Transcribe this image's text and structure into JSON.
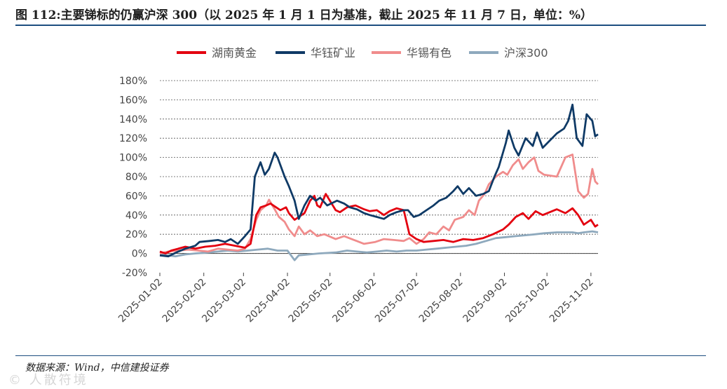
{
  "title": "图 112:主要锑标的仍赢沪深 300（以 2025 年 1 月 1 日为基准，截止 2025 年 11 月 7 日，单位：%）",
  "source": "数据来源：Wind，中信建投证券",
  "watermark": "© 人散符境",
  "chart_data": {
    "type": "line",
    "y_ticks": [
      "-20%",
      "0%",
      "20%",
      "40%",
      "60%",
      "80%",
      "100%",
      "120%",
      "140%",
      "160%",
      "180%"
    ],
    "ylim": [
      -20,
      180
    ],
    "x_ticks": [
      "2025-01-02",
      "2025-02-02",
      "2025-03-02",
      "2025-04-02",
      "2025-05-02",
      "2025-06-02",
      "2025-07-02",
      "2025-08-02",
      "2025-09-02",
      "2025-10-02",
      "2025-11-02"
    ],
    "x_range": [
      "2025-01-02",
      "2025-11-07"
    ],
    "grid": "horizontal dashed",
    "legend_position": "top",
    "series": [
      {
        "name": "湖南黄金",
        "color": "#e3000f",
        "points": [
          [
            "2025-01-02",
            2
          ],
          [
            "2025-01-06",
            0
          ],
          [
            "2025-01-10",
            3
          ],
          [
            "2025-01-15",
            5
          ],
          [
            "2025-01-20",
            7
          ],
          [
            "2025-01-27",
            5
          ],
          [
            "2025-02-03",
            7
          ],
          [
            "2025-02-10",
            8
          ],
          [
            "2025-02-17",
            10
          ],
          [
            "2025-02-24",
            8
          ],
          [
            "2025-03-03",
            6
          ],
          [
            "2025-03-07",
            10
          ],
          [
            "2025-03-11",
            40
          ],
          [
            "2025-03-14",
            48
          ],
          [
            "2025-03-18",
            50
          ],
          [
            "2025-03-21",
            52
          ],
          [
            "2025-03-25",
            48
          ],
          [
            "2025-03-28",
            45
          ],
          [
            "2025-04-01",
            48
          ],
          [
            "2025-04-03",
            42
          ],
          [
            "2025-04-07",
            35
          ],
          [
            "2025-04-10",
            38
          ],
          [
            "2025-04-14",
            42
          ],
          [
            "2025-04-18",
            55
          ],
          [
            "2025-04-21",
            60
          ],
          [
            "2025-04-23",
            50
          ],
          [
            "2025-04-25",
            48
          ],
          [
            "2025-04-29",
            62
          ],
          [
            "2025-05-06",
            45
          ],
          [
            "2025-05-09",
            43
          ],
          [
            "2025-05-14",
            48
          ],
          [
            "2025-05-20",
            50
          ],
          [
            "2025-05-26",
            46
          ],
          [
            "2025-05-30",
            44
          ],
          [
            "2025-06-04",
            45
          ],
          [
            "2025-06-09",
            40
          ],
          [
            "2025-06-13",
            44
          ],
          [
            "2025-06-18",
            47
          ],
          [
            "2025-06-23",
            45
          ],
          [
            "2025-06-27",
            20
          ],
          [
            "2025-07-02",
            15
          ],
          [
            "2025-07-07",
            12
          ],
          [
            "2025-07-14",
            13
          ],
          [
            "2025-07-21",
            14
          ],
          [
            "2025-07-28",
            12
          ],
          [
            "2025-08-04",
            15
          ],
          [
            "2025-08-11",
            14
          ],
          [
            "2025-08-18",
            16
          ],
          [
            "2025-08-25",
            20
          ],
          [
            "2025-09-01",
            25
          ],
          [
            "2025-09-05",
            30
          ],
          [
            "2025-09-10",
            38
          ],
          [
            "2025-09-15",
            42
          ],
          [
            "2025-09-19",
            36
          ],
          [
            "2025-09-24",
            44
          ],
          [
            "2025-09-29",
            40
          ],
          [
            "2025-10-09",
            46
          ],
          [
            "2025-10-15",
            42
          ],
          [
            "2025-10-20",
            47
          ],
          [
            "2025-10-24",
            40
          ],
          [
            "2025-10-28",
            30
          ],
          [
            "2025-11-02",
            35
          ],
          [
            "2025-11-05",
            28
          ],
          [
            "2025-11-07",
            30
          ]
        ]
      },
      {
        "name": "华钰矿业",
        "color": "#0f3a66",
        "points": [
          [
            "2025-01-02",
            -2
          ],
          [
            "2025-01-08",
            -3
          ],
          [
            "2025-01-15",
            2
          ],
          [
            "2025-01-20",
            5
          ],
          [
            "2025-01-27",
            8
          ],
          [
            "2025-01-30",
            12
          ],
          [
            "2025-02-06",
            13
          ],
          [
            "2025-02-12",
            14
          ],
          [
            "2025-02-17",
            12
          ],
          [
            "2025-02-21",
            15
          ],
          [
            "2025-02-26",
            10
          ],
          [
            "2025-03-03",
            18
          ],
          [
            "2025-03-07",
            25
          ],
          [
            "2025-03-10",
            80
          ],
          [
            "2025-03-14",
            95
          ],
          [
            "2025-03-17",
            82
          ],
          [
            "2025-03-20",
            88
          ],
          [
            "2025-03-24",
            105
          ],
          [
            "2025-03-26",
            100
          ],
          [
            "2025-03-31",
            80
          ],
          [
            "2025-04-03",
            70
          ],
          [
            "2025-04-07",
            55
          ],
          [
            "2025-04-10",
            36
          ],
          [
            "2025-04-14",
            50
          ],
          [
            "2025-04-18",
            60
          ],
          [
            "2025-04-22",
            55
          ],
          [
            "2025-04-25",
            58
          ],
          [
            "2025-04-30",
            50
          ],
          [
            "2025-05-07",
            55
          ],
          [
            "2025-05-12",
            52
          ],
          [
            "2025-05-16",
            48
          ],
          [
            "2025-05-21",
            46
          ],
          [
            "2025-05-26",
            42
          ],
          [
            "2025-05-30",
            40
          ],
          [
            "2025-06-04",
            38
          ],
          [
            "2025-06-09",
            36
          ],
          [
            "2025-06-13",
            40
          ],
          [
            "2025-06-18",
            43
          ],
          [
            "2025-06-23",
            45
          ],
          [
            "2025-06-26",
            45
          ],
          [
            "2025-06-30",
            38
          ],
          [
            "2025-07-04",
            40
          ],
          [
            "2025-07-09",
            45
          ],
          [
            "2025-07-14",
            50
          ],
          [
            "2025-07-18",
            55
          ],
          [
            "2025-07-23",
            58
          ],
          [
            "2025-07-28",
            65
          ],
          [
            "2025-07-31",
            70
          ],
          [
            "2025-08-04",
            62
          ],
          [
            "2025-08-08",
            68
          ],
          [
            "2025-08-13",
            60
          ],
          [
            "2025-08-18",
            62
          ],
          [
            "2025-08-22",
            65
          ],
          [
            "2025-08-26",
            80
          ],
          [
            "2025-08-29",
            90
          ],
          [
            "2025-09-03",
            115
          ],
          [
            "2025-09-05",
            128
          ],
          [
            "2025-09-09",
            110
          ],
          [
            "2025-09-12",
            102
          ],
          [
            "2025-09-17",
            120
          ],
          [
            "2025-09-22",
            112
          ],
          [
            "2025-09-25",
            126
          ],
          [
            "2025-09-29",
            110
          ],
          [
            "2025-10-09",
            125
          ],
          [
            "2025-10-14",
            130
          ],
          [
            "2025-10-17",
            138
          ],
          [
            "2025-10-20",
            155
          ],
          [
            "2025-10-23",
            120
          ],
          [
            "2025-10-27",
            112
          ],
          [
            "2025-10-30",
            145
          ],
          [
            "2025-11-03",
            138
          ],
          [
            "2025-11-05",
            122
          ],
          [
            "2025-11-07",
            124
          ]
        ]
      },
      {
        "name": "华锡有色",
        "color": "#f08c8c",
        "points": [
          [
            "2025-01-02",
            0
          ],
          [
            "2025-01-08",
            2
          ],
          [
            "2025-01-15",
            3
          ],
          [
            "2025-01-22",
            4
          ],
          [
            "2025-01-29",
            3
          ],
          [
            "2025-02-05",
            2
          ],
          [
            "2025-02-12",
            5
          ],
          [
            "2025-02-19",
            4
          ],
          [
            "2025-02-26",
            3
          ],
          [
            "2025-03-03",
            5
          ],
          [
            "2025-03-07",
            15
          ],
          [
            "2025-03-11",
            35
          ],
          [
            "2025-03-14",
            45
          ],
          [
            "2025-03-18",
            50
          ],
          [
            "2025-03-20",
            56
          ],
          [
            "2025-03-24",
            46
          ],
          [
            "2025-03-27",
            38
          ],
          [
            "2025-03-31",
            33
          ],
          [
            "2025-04-03",
            25
          ],
          [
            "2025-04-07",
            18
          ],
          [
            "2025-04-10",
            28
          ],
          [
            "2025-04-14",
            20
          ],
          [
            "2025-04-18",
            24
          ],
          [
            "2025-04-23",
            18
          ],
          [
            "2025-04-28",
            20
          ],
          [
            "2025-05-06",
            15
          ],
          [
            "2025-05-12",
            18
          ],
          [
            "2025-05-19",
            14
          ],
          [
            "2025-05-26",
            10
          ],
          [
            "2025-06-03",
            12
          ],
          [
            "2025-06-09",
            15
          ],
          [
            "2025-06-16",
            14
          ],
          [
            "2025-06-23",
            13
          ],
          [
            "2025-06-27",
            16
          ],
          [
            "2025-07-02",
            10
          ],
          [
            "2025-07-07",
            15
          ],
          [
            "2025-07-11",
            22
          ],
          [
            "2025-07-16",
            20
          ],
          [
            "2025-07-21",
            28
          ],
          [
            "2025-07-25",
            24
          ],
          [
            "2025-07-29",
            35
          ],
          [
            "2025-08-04",
            38
          ],
          [
            "2025-08-08",
            45
          ],
          [
            "2025-08-12",
            40
          ],
          [
            "2025-08-15",
            55
          ],
          [
            "2025-08-19",
            62
          ],
          [
            "2025-08-22",
            72
          ],
          [
            "2025-08-27",
            80
          ],
          [
            "2025-09-01",
            85
          ],
          [
            "2025-09-04",
            82
          ],
          [
            "2025-09-08",
            92
          ],
          [
            "2025-09-12",
            98
          ],
          [
            "2025-09-15",
            88
          ],
          [
            "2025-09-19",
            95
          ],
          [
            "2025-09-23",
            100
          ],
          [
            "2025-09-26",
            86
          ],
          [
            "2025-09-30",
            82
          ],
          [
            "2025-10-09",
            80
          ],
          [
            "2025-10-15",
            100
          ],
          [
            "2025-10-20",
            103
          ],
          [
            "2025-10-24",
            65
          ],
          [
            "2025-10-28",
            58
          ],
          [
            "2025-10-31",
            62
          ],
          [
            "2025-11-03",
            88
          ],
          [
            "2025-11-05",
            75
          ],
          [
            "2025-11-07",
            72
          ]
        ]
      },
      {
        "name": "沪深300",
        "color": "#8ea9bd",
        "points": [
          [
            "2025-01-02",
            -1
          ],
          [
            "2025-01-13",
            -3
          ],
          [
            "2025-01-20",
            -1
          ],
          [
            "2025-01-27",
            0
          ],
          [
            "2025-02-05",
            1
          ],
          [
            "2025-02-12",
            2
          ],
          [
            "2025-02-19",
            3
          ],
          [
            "2025-02-26",
            2
          ],
          [
            "2025-03-05",
            3
          ],
          [
            "2025-03-12",
            4
          ],
          [
            "2025-03-19",
            5
          ],
          [
            "2025-03-26",
            3
          ],
          [
            "2025-04-02",
            3
          ],
          [
            "2025-04-07",
            -7
          ],
          [
            "2025-04-10",
            -2
          ],
          [
            "2025-04-17",
            -1
          ],
          [
            "2025-04-24",
            0
          ],
          [
            "2025-05-06",
            1
          ],
          [
            "2025-05-14",
            3
          ],
          [
            "2025-05-21",
            2
          ],
          [
            "2025-05-28",
            1
          ],
          [
            "2025-06-04",
            2
          ],
          [
            "2025-06-11",
            3
          ],
          [
            "2025-06-18",
            2
          ],
          [
            "2025-06-25",
            3
          ],
          [
            "2025-07-02",
            3
          ],
          [
            "2025-07-09",
            4
          ],
          [
            "2025-07-16",
            5
          ],
          [
            "2025-07-23",
            6
          ],
          [
            "2025-07-30",
            7
          ],
          [
            "2025-08-06",
            8
          ],
          [
            "2025-08-13",
            10
          ],
          [
            "2025-08-20",
            13
          ],
          [
            "2025-08-27",
            16
          ],
          [
            "2025-09-03",
            17
          ],
          [
            "2025-09-10",
            18
          ],
          [
            "2025-09-17",
            19
          ],
          [
            "2025-09-24",
            20
          ],
          [
            "2025-09-30",
            21
          ],
          [
            "2025-10-09",
            22
          ],
          [
            "2025-10-16",
            22
          ],
          [
            "2025-10-20",
            22
          ],
          [
            "2025-10-24",
            21
          ],
          [
            "2025-10-28",
            22
          ],
          [
            "2025-11-03",
            23
          ],
          [
            "2025-11-07",
            22
          ]
        ]
      }
    ]
  }
}
